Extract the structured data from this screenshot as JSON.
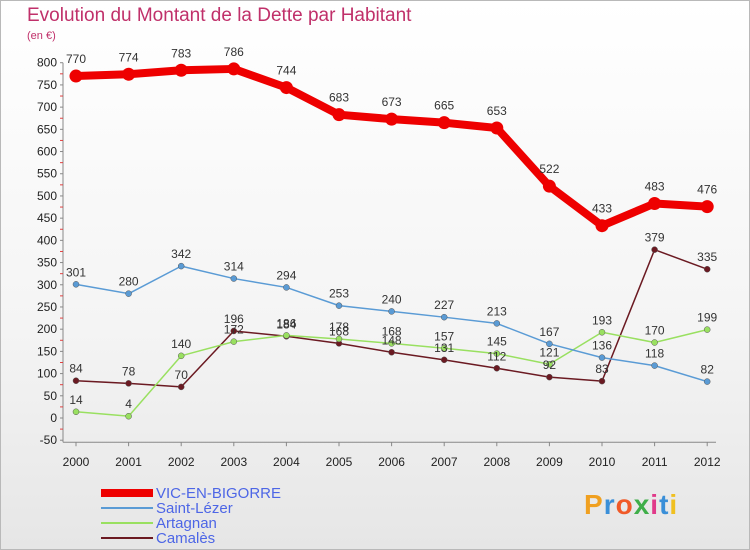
{
  "title": "Evolution du Montant de la Dette par Habitant",
  "unit": "(en €)",
  "brand": "Proxiti",
  "chart_data": {
    "type": "line",
    "title": "Evolution du Montant de la Dette par Habitant",
    "ylabel": "(en €)",
    "xlabel": "",
    "ylim": [
      -50,
      800
    ],
    "yticks": [
      -50,
      0,
      50,
      100,
      150,
      200,
      250,
      300,
      350,
      400,
      450,
      500,
      550,
      600,
      650,
      700,
      750,
      800
    ],
    "grid": false,
    "legend": "bottom-left",
    "x": [
      "2000",
      "2001",
      "2002",
      "2003",
      "2004",
      "2005",
      "2006",
      "2007",
      "2008",
      "2009",
      "2010",
      "2011",
      "2012"
    ],
    "series": [
      {
        "name": "VIC-EN-BIGORRE",
        "color": "#ee0000",
        "values": [
          770,
          774,
          783,
          786,
          744,
          683,
          673,
          665,
          653,
          522,
          433,
          483,
          476
        ]
      },
      {
        "name": "Saint-Lézer",
        "color": "#5a9bd5",
        "values": [
          301,
          280,
          342,
          314,
          294,
          253,
          240,
          227,
          213,
          167,
          136,
          118,
          82
        ]
      },
      {
        "name": "Artagnan",
        "color": "#99e060",
        "values": [
          14,
          4,
          140,
          172,
          186,
          178,
          168,
          157,
          145,
          121,
          193,
          170,
          199
        ]
      },
      {
        "name": "Camalès",
        "color": "#6b1a22",
        "values": [
          84,
          78,
          70,
          196,
          184,
          168,
          148,
          131,
          112,
          92,
          83,
          379,
          335
        ]
      }
    ]
  }
}
